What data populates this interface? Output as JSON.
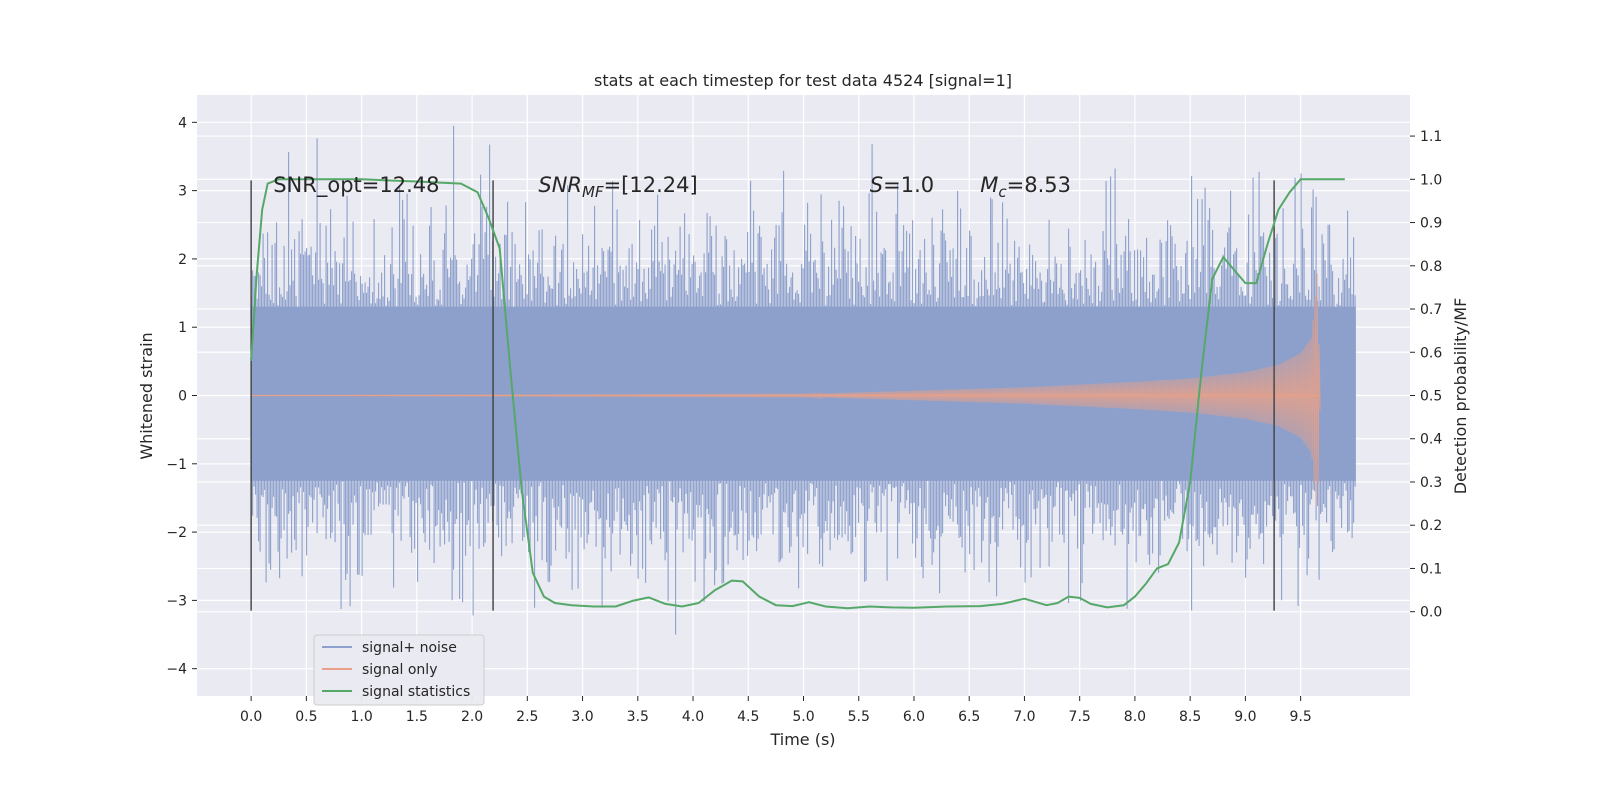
{
  "chart_data": {
    "type": "line",
    "title": "stats at each timestep for test data 4524 [signal=1]",
    "xlabel": "Time (s)",
    "ylabel_left": "Whitened strain",
    "ylabel_right": "Detection probability/MF",
    "x_ticks": [
      "0.0",
      "0.5",
      "1.0",
      "1.5",
      "2.0",
      "2.5",
      "3.0",
      "3.5",
      "4.0",
      "4.5",
      "5.0",
      "5.5",
      "6.0",
      "6.5",
      "7.0",
      "7.5",
      "8.0",
      "8.5",
      "9.0",
      "9.5"
    ],
    "y_left_ticks": [
      "−4",
      "−3",
      "−2",
      "−1",
      "0",
      "1",
      "2",
      "3",
      "4"
    ],
    "y_right_ticks": [
      "0.0",
      "0.1",
      "0.2",
      "0.3",
      "0.4",
      "0.5",
      "0.6",
      "0.7",
      "0.8",
      "0.9",
      "1.0",
      "1.1"
    ],
    "xlim": [
      -0.49,
      10.49
    ],
    "ylim_left": [
      -4.4,
      4.4
    ],
    "ylim_right": [
      -0.195,
      1.195
    ],
    "grid": true,
    "legend_position": "lower-left",
    "annotations": [
      {
        "text": "SNR_opt=12.48",
        "x": 0.2,
        "y": 3.1
      },
      {
        "text": "SNR",
        "sub": "MF",
        "after": "=[12.24]",
        "italic": true,
        "x": 2.6,
        "y": 3.1
      },
      {
        "text": "S",
        "after": "=1.0",
        "italic": true,
        "x": 5.6,
        "y": 3.1
      },
      {
        "text": "M",
        "sub": "c",
        "after": "=8.53",
        "italic": true,
        "x": 6.6,
        "y": 3.1
      }
    ],
    "vertical_markers": [
      {
        "x": 0.0,
        "y_range": [
          -3.15,
          3.15
        ]
      },
      {
        "x": 2.19,
        "y_range": [
          -3.15,
          3.15
        ]
      },
      {
        "x": 9.26,
        "y_range": [
          -3.15,
          3.15
        ]
      }
    ],
    "series": [
      {
        "name": "signal+ noise",
        "color": "#8da0cb",
        "kind": "noise",
        "x_range": [
          0.0,
          10.0
        ],
        "typical_band": [
          -1.25,
          1.3
        ],
        "approx_extremes": [
          -3.65,
          4.02
        ]
      },
      {
        "name": "signal only",
        "color": "#e8a088",
        "kind": "chirp",
        "x_range": [
          0.0,
          9.68
        ],
        "envelope": {
          "x": [
            5.0,
            6.0,
            7.0,
            8.0,
            8.5,
            9.0,
            9.3,
            9.5,
            9.6,
            9.65,
            9.68
          ],
          "amp": [
            0.02,
            0.07,
            0.12,
            0.2,
            0.25,
            0.34,
            0.45,
            0.62,
            0.85,
            1.8,
            0.0
          ]
        }
      },
      {
        "name": "signal statistics",
        "color": "#55a868",
        "axis": "right",
        "x": [
          0.0,
          0.05,
          0.1,
          0.15,
          0.25,
          0.5,
          1.0,
          1.5,
          1.9,
          2.05,
          2.15,
          2.25,
          2.35,
          2.45,
          2.55,
          2.65,
          2.75,
          2.9,
          3.1,
          3.3,
          3.45,
          3.6,
          3.75,
          3.9,
          4.05,
          4.2,
          4.35,
          4.45,
          4.6,
          4.75,
          4.9,
          5.05,
          5.2,
          5.4,
          5.6,
          5.8,
          6.0,
          6.3,
          6.6,
          6.8,
          7.0,
          7.2,
          7.3,
          7.4,
          7.5,
          7.6,
          7.75,
          7.9,
          8.0,
          8.1,
          8.2,
          8.3,
          8.4,
          8.5,
          8.6,
          8.7,
          8.8,
          8.9,
          9.0,
          9.1,
          9.2,
          9.3,
          9.4,
          9.5,
          9.6,
          9.7,
          9.9
        ],
        "y": [
          0.58,
          0.78,
          0.93,
          0.99,
          1.0,
          1.0,
          1.0,
          0.995,
          0.99,
          0.97,
          0.91,
          0.84,
          0.55,
          0.28,
          0.09,
          0.035,
          0.02,
          0.015,
          0.012,
          0.012,
          0.025,
          0.033,
          0.018,
          0.012,
          0.02,
          0.05,
          0.072,
          0.07,
          0.035,
          0.015,
          0.013,
          0.022,
          0.012,
          0.008,
          0.012,
          0.01,
          0.009,
          0.012,
          0.013,
          0.018,
          0.03,
          0.015,
          0.02,
          0.035,
          0.032,
          0.018,
          0.01,
          0.015,
          0.035,
          0.065,
          0.1,
          0.11,
          0.16,
          0.3,
          0.55,
          0.77,
          0.82,
          0.79,
          0.76,
          0.76,
          0.85,
          0.93,
          0.97,
          1.0,
          1.0,
          1.0,
          1.0
        ]
      }
    ]
  }
}
